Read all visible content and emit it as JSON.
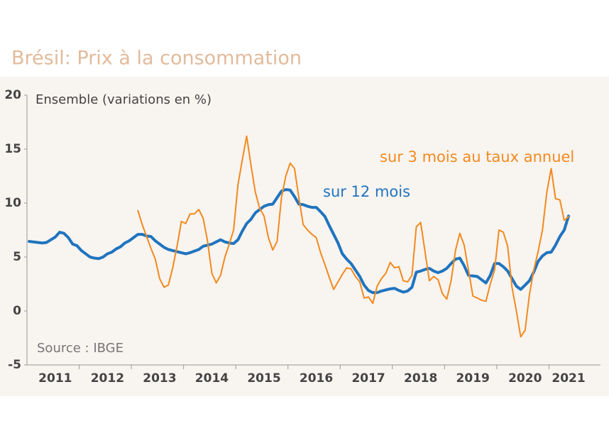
{
  "chart_data": {
    "type": "line",
    "title": "Brésil: Prix à la consommation",
    "y_label": "Ensemble (variations en %)",
    "source": "Source : IBGE",
    "categories": [
      null,
      null,
      null,
      null,
      null,
      null,
      "2011",
      null,
      null,
      null,
      null,
      null,
      null,
      null,
      null,
      null,
      null,
      null,
      "2012",
      null,
      null,
      null,
      null,
      null,
      null,
      null,
      null,
      null,
      null,
      null,
      "2013",
      null,
      null,
      null,
      null,
      null,
      null,
      null,
      null,
      null,
      null,
      null,
      "2014",
      null,
      null,
      null,
      null,
      null,
      null,
      null,
      null,
      null,
      null,
      null,
      "2015",
      null,
      null,
      null,
      null,
      null,
      null,
      null,
      null,
      null,
      null,
      null,
      "2016",
      null,
      null,
      null,
      null,
      null,
      null,
      null,
      null,
      null,
      null,
      null,
      "2017",
      null,
      null,
      null,
      null,
      null,
      null,
      null,
      null,
      null,
      null,
      null,
      "2018",
      null,
      null,
      null,
      null,
      null,
      null,
      null,
      null,
      null,
      null,
      null,
      "2019",
      null,
      null,
      null,
      null,
      null,
      null,
      null,
      null,
      null,
      null,
      null,
      "2020",
      null,
      null,
      null,
      null,
      null,
      null,
      null,
      null,
      null,
      "2021"
    ],
    "series": [
      {
        "name": "sur 12 mois",
        "color": "#1f74bf",
        "width": 4,
        "values": [
          6.45,
          6.4,
          6.35,
          6.3,
          6.35,
          6.6,
          6.85,
          7.3,
          7.2,
          6.8,
          6.2,
          6.05,
          5.6,
          5.3,
          5.0,
          4.9,
          4.85,
          5.0,
          5.3,
          5.45,
          5.75,
          5.95,
          6.3,
          6.5,
          6.8,
          7.1,
          7.1,
          6.95,
          6.9,
          6.5,
          6.2,
          5.9,
          5.7,
          5.6,
          5.5,
          5.4,
          5.3,
          5.4,
          5.55,
          5.7,
          6.0,
          6.1,
          6.2,
          6.4,
          6.6,
          6.4,
          6.3,
          6.25,
          6.6,
          7.4,
          8.1,
          8.5,
          9.1,
          9.4,
          9.7,
          9.85,
          9.9,
          10.5,
          11.1,
          11.25,
          11.2,
          10.6,
          9.9,
          9.85,
          9.7,
          9.6,
          9.6,
          9.2,
          8.75,
          7.9,
          7.1,
          6.3,
          5.3,
          4.8,
          4.4,
          3.8,
          3.2,
          2.4,
          1.9,
          1.7,
          1.7,
          1.85,
          1.95,
          2.05,
          2.1,
          1.9,
          1.75,
          1.85,
          2.2,
          3.6,
          3.7,
          3.85,
          3.95,
          3.7,
          3.55,
          3.7,
          3.95,
          4.4,
          4.8,
          4.9,
          4.2,
          3.3,
          3.25,
          3.2,
          2.9,
          2.6,
          3.3,
          4.4,
          4.4,
          4.1,
          3.7,
          3.0,
          2.3,
          2.0,
          2.4,
          2.8,
          3.6,
          4.6,
          5.1,
          5.4,
          5.45,
          6.1,
          6.9,
          7.5,
          8.8
        ]
      },
      {
        "name": "sur 3 mois au taux annuel",
        "color": "#f28a1e",
        "width": 2,
        "values": [
          null,
          null,
          null,
          null,
          null,
          null,
          null,
          null,
          null,
          null,
          null,
          null,
          null,
          null,
          null,
          null,
          null,
          null,
          null,
          null,
          null,
          null,
          null,
          null,
          null,
          9.3,
          8.0,
          6.9,
          5.8,
          4.8,
          3.0,
          2.2,
          2.4,
          4.0,
          6.0,
          8.3,
          8.1,
          9.0,
          9.0,
          9.4,
          8.6,
          6.5,
          3.5,
          2.6,
          3.3,
          5.0,
          6.2,
          7.5,
          11.7,
          14.0,
          16.2,
          13.5,
          11.0,
          9.5,
          8.8,
          6.8,
          5.65,
          6.45,
          10.5,
          12.5,
          13.7,
          13.2,
          10.5,
          8.0,
          7.5,
          7.1,
          6.8,
          5.4,
          4.3,
          3.1,
          2.0,
          2.7,
          3.4,
          4.0,
          3.9,
          3.2,
          2.7,
          1.2,
          1.3,
          0.7,
          2.3,
          3.0,
          3.5,
          4.5,
          4.0,
          4.1,
          2.8,
          2.7,
          3.3,
          7.8,
          8.2,
          5.5,
          2.8,
          3.2,
          2.9,
          1.6,
          1.1,
          2.8,
          5.6,
          7.2,
          6.1,
          3.8,
          1.4,
          1.2,
          1.0,
          0.9,
          2.5,
          3.8,
          7.5,
          7.3,
          6.0,
          2.2,
          0.0,
          -2.4,
          -1.8,
          1.5,
          3.8,
          5.5,
          7.5,
          11.0,
          13.2,
          10.4,
          10.3,
          8.4,
          8.75
        ]
      }
    ],
    "ylim": [
      -5,
      20
    ],
    "yticks": [
      -5,
      0,
      5,
      10,
      15,
      20
    ],
    "grid": false
  }
}
